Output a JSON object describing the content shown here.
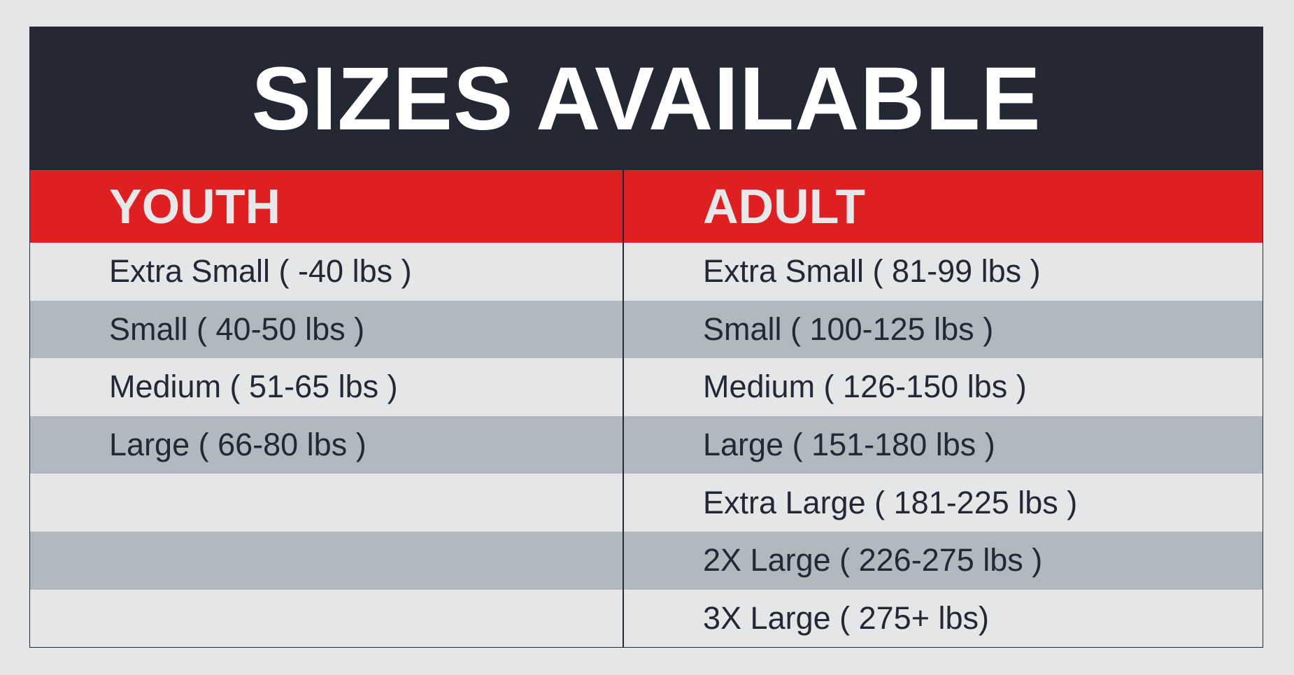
{
  "title": "SIZES AVAILABLE",
  "columns": [
    "YOUTH",
    "ADULT"
  ],
  "youth": [
    "Extra Small ( -40 lbs )",
    "Small ( 40-50 lbs )",
    "Medium ( 51-65 lbs )",
    "Large ( 66-80 lbs )",
    "",
    "",
    ""
  ],
  "adult": [
    "Extra Small ( 81-99 lbs )",
    "Small ( 100-125 lbs )",
    "Medium ( 126-150 lbs )",
    "Large ( 151-180 lbs )",
    "Extra Large ( 181-225 lbs )",
    "2X Large ( 226-275 lbs )",
    "3X Large ( 275+ lbs)"
  ],
  "colors": {
    "header": "#242834",
    "accent": "#df2022",
    "row_light": "#e5e6e8",
    "row_dark": "#b1b8bf"
  }
}
